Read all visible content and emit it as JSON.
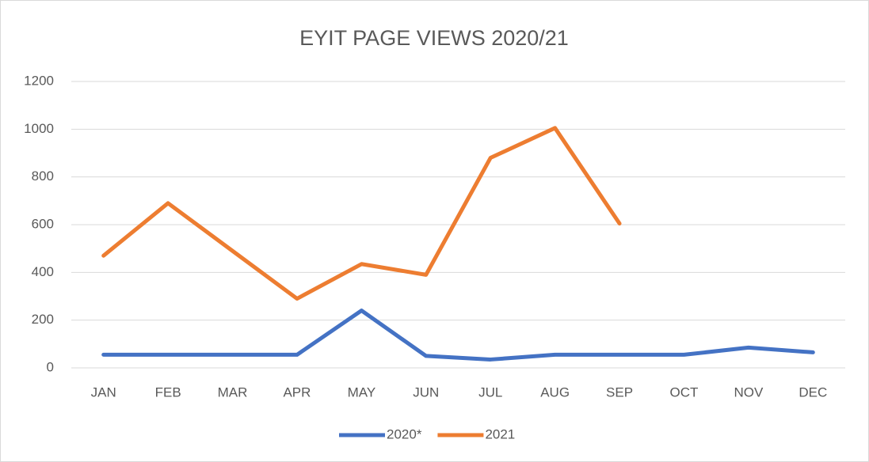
{
  "chart_data": {
    "type": "line",
    "title": "EYIT PAGE VIEWS 2020/21",
    "categories": [
      "JAN",
      "FEB",
      "MAR",
      "APR",
      "MAY",
      "JUN",
      "JUL",
      "AUG",
      "SEP",
      "OCT",
      "NOV",
      "DEC"
    ],
    "series": [
      {
        "name": "2020*",
        "color": "#4472c4",
        "values": [
          55,
          55,
          55,
          55,
          240,
          50,
          35,
          55,
          55,
          55,
          85,
          65
        ]
      },
      {
        "name": "2021",
        "color": "#ed7d31",
        "values": [
          470,
          690,
          490,
          290,
          435,
          390,
          880,
          1005,
          605,
          null,
          null,
          null
        ]
      }
    ],
    "ylim": [
      0,
      1200
    ],
    "yticks": [
      0,
      200,
      400,
      600,
      800,
      1000,
      1200
    ],
    "grid": true,
    "legend": "bottom"
  }
}
